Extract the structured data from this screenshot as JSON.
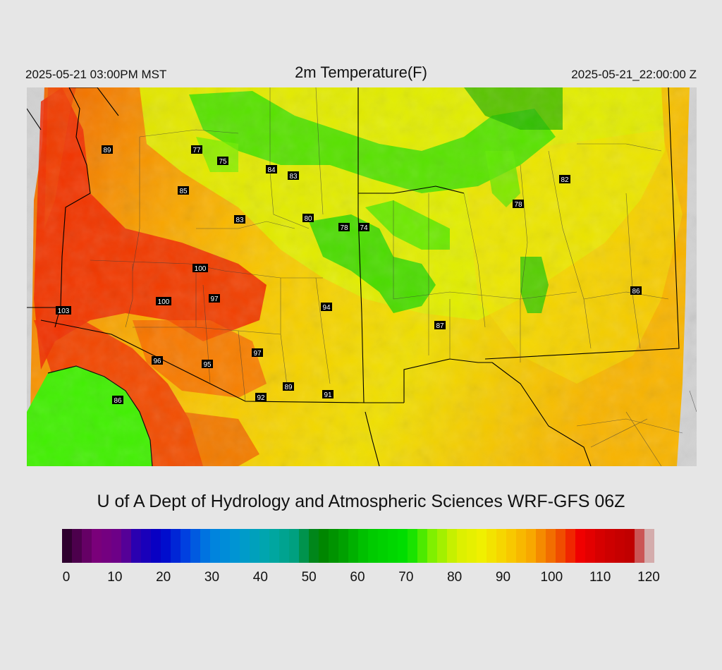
{
  "header": {
    "valid_local": "2025-05-21 03:00PM MST",
    "title": "2m Temperature(F)",
    "valid_utc": "2025-05-21_22:00:00 Z"
  },
  "credit": "U of A Dept of Hydrology and Atmospheric Sciences WRF-GFS 06Z",
  "colorbar": {
    "min": 0,
    "max": 120,
    "tick_labels": [
      "0",
      "10",
      "20",
      "30",
      "40",
      "50",
      "60",
      "70",
      "80",
      "90",
      "100",
      "110",
      "120"
    ],
    "stops": [
      {
        "v": 0,
        "c": "#200020"
      },
      {
        "v": 4,
        "c": "#5a005a"
      },
      {
        "v": 7,
        "c": "#7a007a"
      },
      {
        "v": 12,
        "c": "#6a008a"
      },
      {
        "v": 15,
        "c": "#2a00b0"
      },
      {
        "v": 20,
        "c": "#0000c8"
      },
      {
        "v": 25,
        "c": "#0040e0"
      },
      {
        "v": 30,
        "c": "#0080e0"
      },
      {
        "v": 36,
        "c": "#0098d0"
      },
      {
        "v": 42,
        "c": "#00a8a8"
      },
      {
        "v": 47,
        "c": "#00a080"
      },
      {
        "v": 52,
        "c": "#008000"
      },
      {
        "v": 57,
        "c": "#00a000"
      },
      {
        "v": 62,
        "c": "#00c800"
      },
      {
        "v": 70,
        "c": "#00e000"
      },
      {
        "v": 75,
        "c": "#80f000"
      },
      {
        "v": 80,
        "c": "#d8f000"
      },
      {
        "v": 85,
        "c": "#f0f000"
      },
      {
        "v": 90,
        "c": "#f8d000"
      },
      {
        "v": 95,
        "c": "#f8a800"
      },
      {
        "v": 100,
        "c": "#f06000"
      },
      {
        "v": 105,
        "c": "#f00000"
      },
      {
        "v": 110,
        "c": "#d00000"
      },
      {
        "v": 115,
        "c": "#c00000"
      },
      {
        "v": 118,
        "c": "#d08080"
      },
      {
        "v": 120,
        "c": "#d8d8d8"
      }
    ]
  },
  "map": {
    "station_labels": [
      {
        "text": "89"
      },
      {
        "text": "77"
      },
      {
        "text": "75"
      },
      {
        "text": "84"
      },
      {
        "text": "83"
      },
      {
        "text": "85"
      },
      {
        "text": "83"
      },
      {
        "text": "80"
      },
      {
        "text": "78"
      },
      {
        "text": "74"
      },
      {
        "text": "82"
      },
      {
        "text": "78"
      },
      {
        "text": "100"
      },
      {
        "text": "100"
      },
      {
        "text": "97"
      },
      {
        "text": "94"
      },
      {
        "text": "103"
      },
      {
        "text": "86"
      },
      {
        "text": "87"
      },
      {
        "text": "97"
      },
      {
        "text": "96"
      },
      {
        "text": "95"
      },
      {
        "text": "89"
      },
      {
        "text": "92"
      },
      {
        "text": "91"
      },
      {
        "text": "86"
      }
    ]
  }
}
